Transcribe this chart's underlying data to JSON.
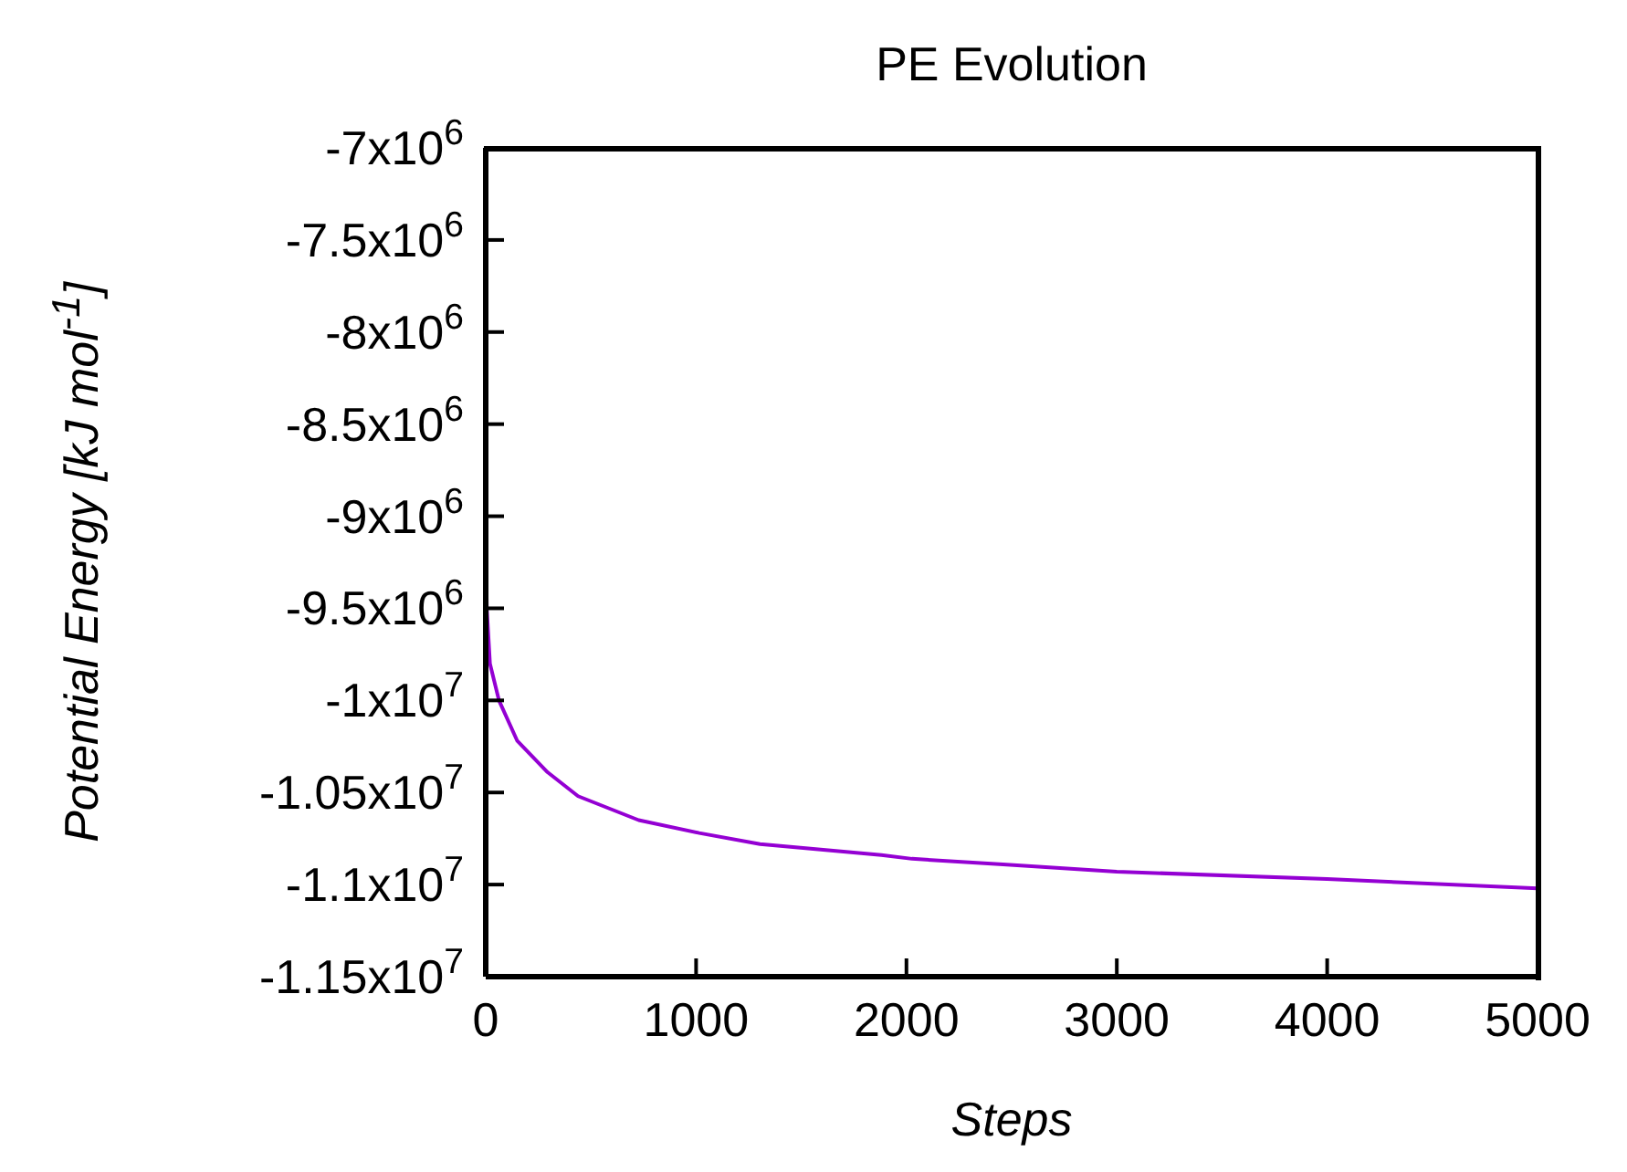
{
  "chart_data": {
    "type": "line",
    "title": "PE Evolution",
    "xlabel": "Steps",
    "ylabel": "Potential Energy [kJ mol$^{-1}$]",
    "x": [
      0,
      5,
      20,
      63,
      150,
      294,
      439,
      727,
      1015,
      1304,
      1881,
      2026,
      2459,
      3000,
      4000,
      5000
    ],
    "series": [
      {
        "color": "#9400d3",
        "values": [
          -9000000,
          -9500000,
          -9800000,
          -10000000,
          -10220000,
          -10390000,
          -10520000,
          -10650000,
          -10720000,
          -10780000,
          -10840000,
          -10860000,
          -10890000,
          -10930000,
          -10970000,
          -11020000
        ]
      }
    ],
    "xlim": [
      0,
      5000
    ],
    "xticks": [
      0,
      1000,
      2000,
      3000,
      4000,
      5000
    ],
    "ylim": [
      -11500000,
      -7000000
    ],
    "yticks": [
      {
        "value": -7000000,
        "label": "-7x10$^{6}$"
      },
      {
        "value": -7500000,
        "label": "-7.5x10$^{6}$"
      },
      {
        "value": -8000000,
        "label": "-8x10$^{6}$"
      },
      {
        "value": -8500000,
        "label": "-8.5x10$^{6}$"
      },
      {
        "value": -9000000,
        "label": "-9x10$^{6}$"
      },
      {
        "value": -9500000,
        "label": "-9.5x10$^{6}$"
      },
      {
        "value": -10000000,
        "label": "-1x10$^{7}$"
      },
      {
        "value": -10500000,
        "label": "-1.05x10$^{7}$"
      },
      {
        "value": -11000000,
        "label": "-1.1x10$^{7}$"
      },
      {
        "value": -11500000,
        "label": "-1.15x10$^{7}$"
      }
    ],
    "grid": false
  }
}
